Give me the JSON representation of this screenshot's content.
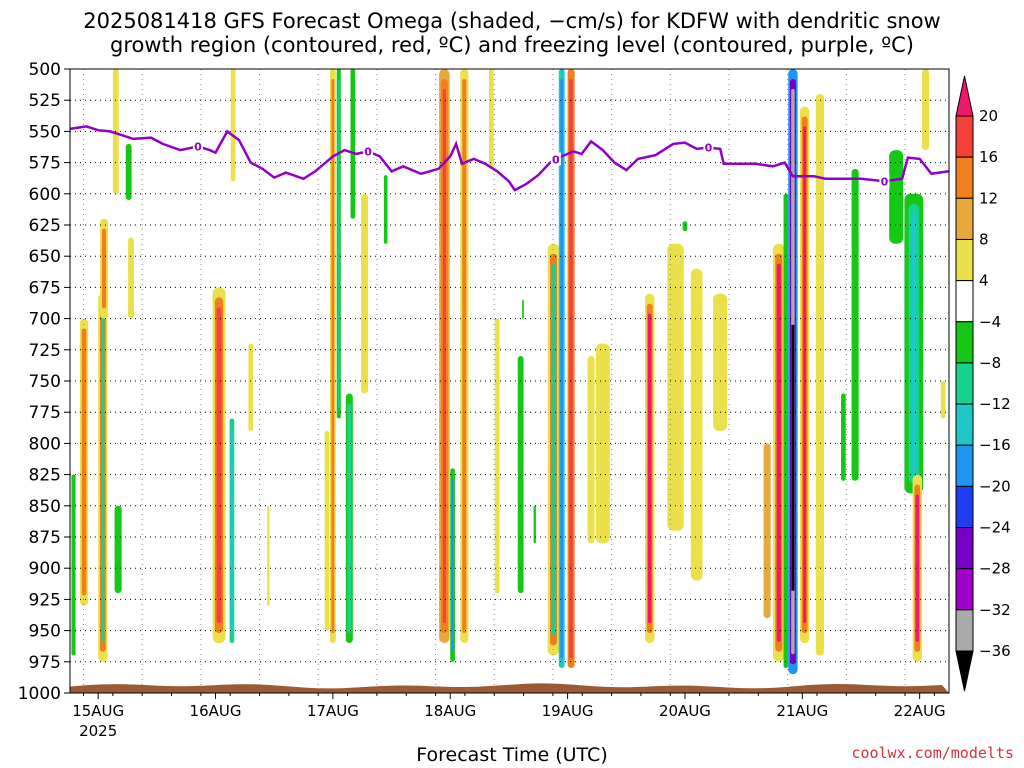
{
  "title_line1": "2025081418 GFS Forecast Omega (shaded, −cm/s) for KDFW with dendritic snow",
  "title_line2": "growth region (contoured, red, ºC) and freezing level (contoured, purple, ºC)",
  "credit": "coolwx.com/modelts",
  "chart_data": {
    "type": "heatmap",
    "xlabel": "Forecast Time (UTC)",
    "ylabel": "",
    "x_ticks": [
      {
        "t": 0.0,
        "label": "15AUG",
        "sub": "2025"
      },
      {
        "t": 1.0,
        "label": "16AUG",
        "sub": ""
      },
      {
        "t": 2.0,
        "label": "17AUG",
        "sub": ""
      },
      {
        "t": 3.0,
        "label": "18AUG",
        "sub": ""
      },
      {
        "t": 4.0,
        "label": "19AUG",
        "sub": ""
      },
      {
        "t": 5.0,
        "label": "20AUG",
        "sub": ""
      },
      {
        "t": 6.0,
        "label": "21AUG",
        "sub": ""
      },
      {
        "t": 7.0,
        "label": "22AUG",
        "sub": ""
      }
    ],
    "x_range_days": [
      -0.24,
      7.25
    ],
    "y_range_hpa": [
      500,
      1000
    ],
    "y_ticks": [
      500,
      525,
      550,
      575,
      600,
      625,
      650,
      675,
      700,
      725,
      750,
      775,
      800,
      825,
      850,
      875,
      900,
      925,
      950,
      975,
      1000
    ],
    "grid": true,
    "colorbar": {
      "labels": [
        20,
        16,
        12,
        8,
        4,
        -4,
        -8,
        -12,
        -16,
        -20,
        -24,
        -28,
        -32,
        -36
      ],
      "colors": [
        "#f0186e",
        "#f5413a",
        "#f07f1e",
        "#e8a83c",
        "#ebe04a",
        "#ffffff",
        "#16c816",
        "#16d28c",
        "#1ec8c8",
        "#1e96f0",
        "#1e3cf0",
        "#7800c8",
        "#a000c8",
        "#aaaaaa",
        "#000000"
      ]
    },
    "freezing_level_label": "0",
    "freezing_level": [
      [
        -0.24,
        548
      ],
      [
        -0.1,
        546
      ],
      [
        0.0,
        549
      ],
      [
        0.1,
        550
      ],
      [
        0.2,
        553
      ],
      [
        0.3,
        556
      ],
      [
        0.45,
        555
      ],
      [
        0.55,
        560
      ],
      [
        0.7,
        565
      ],
      [
        0.85,
        562
      ],
      [
        0.95,
        565
      ],
      [
        1.0,
        567
      ],
      [
        1.1,
        550
      ],
      [
        1.2,
        557
      ],
      [
        1.3,
        575
      ],
      [
        1.4,
        580
      ],
      [
        1.5,
        587
      ],
      [
        1.6,
        583
      ],
      [
        1.75,
        588
      ],
      [
        1.85,
        582
      ],
      [
        2.0,
        570
      ],
      [
        2.1,
        565
      ],
      [
        2.2,
        568
      ],
      [
        2.3,
        566
      ],
      [
        2.4,
        570
      ],
      [
        2.5,
        582
      ],
      [
        2.6,
        578
      ],
      [
        2.75,
        584
      ],
      [
        2.9,
        580
      ],
      [
        3.0,
        570
      ],
      [
        3.05,
        560
      ],
      [
        3.1,
        576
      ],
      [
        3.2,
        572
      ],
      [
        3.3,
        576
      ],
      [
        3.4,
        582
      ],
      [
        3.5,
        590
      ],
      [
        3.55,
        597
      ],
      [
        3.65,
        592
      ],
      [
        3.75,
        585
      ],
      [
        3.85,
        575
      ],
      [
        3.95,
        570
      ],
      [
        4.05,
        566
      ],
      [
        4.12,
        568
      ],
      [
        4.2,
        558
      ],
      [
        4.3,
        565
      ],
      [
        4.4,
        575
      ],
      [
        4.5,
        581
      ],
      [
        4.6,
        572
      ],
      [
        4.75,
        569
      ],
      [
        4.9,
        560
      ],
      [
        5.0,
        559
      ],
      [
        5.1,
        564
      ],
      [
        5.2,
        563
      ],
      [
        5.3,
        564
      ],
      [
        5.33,
        576
      ],
      [
        5.6,
        576
      ],
      [
        5.75,
        578
      ],
      [
        5.85,
        575
      ],
      [
        5.92,
        586
      ],
      [
        6.1,
        586
      ],
      [
        6.2,
        588
      ],
      [
        6.5,
        588
      ],
      [
        6.7,
        590
      ],
      [
        6.85,
        588
      ],
      [
        6.9,
        571
      ],
      [
        7.0,
        572
      ],
      [
        7.1,
        584
      ],
      [
        7.25,
        582
      ]
    ],
    "omega_streaks": [
      {
        "t": -0.21,
        "p0": 825,
        "p1": 970,
        "w": 0.035,
        "layers": [
          [
            0.035,
            "#16c816"
          ]
        ]
      },
      {
        "t": -0.12,
        "p0": 700,
        "p1": 930,
        "w": 0.07,
        "layers": [
          [
            0.07,
            "#ebe04a"
          ],
          [
            0.04,
            "#f07f1e"
          ]
        ]
      },
      {
        "t": 0.04,
        "p0": 680,
        "p1": 975,
        "w": 0.08,
        "layers": [
          [
            0.08,
            "#ebe04a"
          ],
          [
            0.05,
            "#f07f1e"
          ],
          [
            0.025,
            "#16d28c"
          ]
        ]
      },
      {
        "t": 0.05,
        "p0": 620,
        "p1": 700,
        "w": 0.07,
        "layers": [
          [
            0.07,
            "#ebe04a"
          ],
          [
            0.035,
            "#f07f1e"
          ]
        ]
      },
      {
        "t": 0.17,
        "p0": 850,
        "p1": 920,
        "w": 0.06,
        "layers": [
          [
            0.06,
            "#16c816"
          ]
        ]
      },
      {
        "t": 0.15,
        "p0": 500,
        "p1": 600,
        "w": 0.05,
        "layers": [
          [
            0.05,
            "#ebe04a"
          ]
        ]
      },
      {
        "t": 0.26,
        "p0": 560,
        "p1": 605,
        "w": 0.05,
        "layers": [
          [
            0.05,
            "#16c816"
          ]
        ]
      },
      {
        "t": 0.28,
        "p0": 635,
        "p1": 700,
        "w": 0.05,
        "layers": [
          [
            0.05,
            "#ebe04a"
          ]
        ]
      },
      {
        "t": 1.03,
        "p0": 675,
        "p1": 960,
        "w": 0.11,
        "layers": [
          [
            0.11,
            "#ebe04a"
          ],
          [
            0.07,
            "#f07f1e"
          ],
          [
            0.04,
            "#f5413a"
          ]
        ]
      },
      {
        "t": 1.14,
        "p0": 780,
        "p1": 960,
        "w": 0.04,
        "layers": [
          [
            0.04,
            "#16d28c"
          ],
          [
            0.02,
            "#1ec8c8"
          ]
        ]
      },
      {
        "t": 1.15,
        "p0": 500,
        "p1": 590,
        "w": 0.04,
        "layers": [
          [
            0.04,
            "#ebe04a"
          ]
        ]
      },
      {
        "t": 1.3,
        "p0": 720,
        "p1": 790,
        "w": 0.04,
        "layers": [
          [
            0.04,
            "#ebe04a"
          ]
        ]
      },
      {
        "t": 1.45,
        "p0": 850,
        "p1": 930,
        "w": 0.02,
        "layers": [
          [
            0.02,
            "#ebe04a"
          ]
        ]
      },
      {
        "t": 1.95,
        "p0": 790,
        "p1": 950,
        "w": 0.04,
        "layers": [
          [
            0.04,
            "#ebe04a"
          ]
        ]
      },
      {
        "t": 2.0,
        "p0": 500,
        "p1": 960,
        "w": 0.05,
        "layers": [
          [
            0.05,
            "#ebe04a"
          ],
          [
            0.025,
            "#f07f1e"
          ]
        ]
      },
      {
        "t": 2.05,
        "p0": 500,
        "p1": 780,
        "w": 0.035,
        "layers": [
          [
            0.035,
            "#16c816"
          ],
          [
            0.015,
            "#16d28c"
          ]
        ]
      },
      {
        "t": 2.14,
        "p0": 760,
        "p1": 960,
        "w": 0.06,
        "layers": [
          [
            0.06,
            "#16c816"
          ],
          [
            0.035,
            "#16d28c"
          ]
        ]
      },
      {
        "t": 2.17,
        "p0": 500,
        "p1": 620,
        "w": 0.04,
        "layers": [
          [
            0.04,
            "#16c816"
          ]
        ]
      },
      {
        "t": 2.27,
        "p0": 600,
        "p1": 760,
        "w": 0.06,
        "layers": [
          [
            0.06,
            "#ebe04a"
          ]
        ]
      },
      {
        "t": 2.45,
        "p0": 585,
        "p1": 640,
        "w": 0.03,
        "layers": [
          [
            0.03,
            "#16c816"
          ]
        ]
      },
      {
        "t": 2.95,
        "p0": 500,
        "p1": 960,
        "w": 0.09,
        "layers": [
          [
            0.09,
            "#e8a83c"
          ],
          [
            0.06,
            "#f07f1e"
          ],
          [
            0.025,
            "#f5413a"
          ]
        ]
      },
      {
        "t": 3.02,
        "p0": 820,
        "p1": 975,
        "w": 0.04,
        "layers": [
          [
            0.04,
            "#16c816"
          ],
          [
            0.02,
            "#1e96f0"
          ]
        ]
      },
      {
        "t": 3.12,
        "p0": 500,
        "p1": 960,
        "w": 0.07,
        "layers": [
          [
            0.07,
            "#ebe04a"
          ],
          [
            0.035,
            "#f07f1e"
          ]
        ]
      },
      {
        "t": 3.35,
        "p0": 500,
        "p1": 580,
        "w": 0.04,
        "layers": [
          [
            0.04,
            "#ebe04a"
          ]
        ]
      },
      {
        "t": 3.4,
        "p0": 700,
        "p1": 920,
        "w": 0.04,
        "layers": [
          [
            0.04,
            "#ebe04a"
          ]
        ]
      },
      {
        "t": 3.6,
        "p0": 730,
        "p1": 920,
        "w": 0.05,
        "layers": [
          [
            0.05,
            "#16c816"
          ]
        ]
      },
      {
        "t": 3.88,
        "p0": 640,
        "p1": 970,
        "w": 0.1,
        "layers": [
          [
            0.1,
            "#ebe04a"
          ],
          [
            0.06,
            "#f07f1e"
          ],
          [
            0.03,
            "#16d28c"
          ]
        ]
      },
      {
        "t": 3.95,
        "p0": 500,
        "p1": 980,
        "w": 0.05,
        "layers": [
          [
            0.05,
            "#1ec8c8"
          ],
          [
            0.025,
            "#1e96f0"
          ]
        ]
      },
      {
        "t": 4.03,
        "p0": 500,
        "p1": 980,
        "w": 0.06,
        "layers": [
          [
            0.06,
            "#f07f1e"
          ],
          [
            0.03,
            "#f5413a"
          ]
        ]
      },
      {
        "t": 4.2,
        "p0": 730,
        "p1": 880,
        "w": 0.06,
        "layers": [
          [
            0.06,
            "#ebe04a"
          ]
        ]
      },
      {
        "t": 4.3,
        "p0": 720,
        "p1": 880,
        "w": 0.12,
        "layers": [
          [
            0.12,
            "#ebe04a"
          ]
        ]
      },
      {
        "t": 3.72,
        "p0": 850,
        "p1": 880,
        "w": 0.02,
        "layers": [
          [
            0.02,
            "#16c816"
          ]
        ]
      },
      {
        "t": 3.62,
        "p0": 685,
        "p1": 700,
        "w": 0.015,
        "layers": [
          [
            0.015,
            "#16c816"
          ]
        ]
      },
      {
        "t": 4.7,
        "p0": 680,
        "p1": 960,
        "w": 0.08,
        "layers": [
          [
            0.08,
            "#ebe04a"
          ],
          [
            0.05,
            "#f07f1e"
          ],
          [
            0.03,
            "#f0186e"
          ]
        ]
      },
      {
        "t": 4.92,
        "p0": 640,
        "p1": 870,
        "w": 0.14,
        "layers": [
          [
            0.14,
            "#ebe04a"
          ]
        ]
      },
      {
        "t": 5.1,
        "p0": 660,
        "p1": 910,
        "w": 0.1,
        "layers": [
          [
            0.1,
            "#ebe04a"
          ]
        ]
      },
      {
        "t": 5.3,
        "p0": 680,
        "p1": 790,
        "w": 0.12,
        "layers": [
          [
            0.12,
            "#ebe04a"
          ]
        ]
      },
      {
        "t": 5.0,
        "p0": 622,
        "p1": 630,
        "w": 0.04,
        "layers": [
          [
            0.04,
            "#16c816"
          ]
        ]
      },
      {
        "t": 5.7,
        "p0": 800,
        "p1": 940,
        "w": 0.06,
        "layers": [
          [
            0.06,
            "#e8a83c"
          ]
        ]
      },
      {
        "t": 5.8,
        "p0": 640,
        "p1": 975,
        "w": 0.1,
        "layers": [
          [
            0.1,
            "#ebe04a"
          ],
          [
            0.06,
            "#f07f1e"
          ],
          [
            0.035,
            "#f0186e"
          ]
        ]
      },
      {
        "t": 5.86,
        "p0": 600,
        "p1": 980,
        "w": 0.04,
        "layers": [
          [
            0.04,
            "#16c816"
          ]
        ]
      },
      {
        "t": 5.92,
        "p0": 500,
        "p1": 985,
        "w": 0.08,
        "layers": [
          [
            0.08,
            "#1e96f0"
          ],
          [
            0.05,
            "#7800c8"
          ],
          [
            0.03,
            "#aaaaaa"
          ]
        ]
      },
      {
        "t": 6.02,
        "p0": 530,
        "p1": 960,
        "w": 0.08,
        "layers": [
          [
            0.08,
            "#ebe04a"
          ],
          [
            0.05,
            "#f07f1e"
          ],
          [
            0.025,
            "#f0186e"
          ]
        ]
      },
      {
        "t": 6.15,
        "p0": 520,
        "p1": 970,
        "w": 0.07,
        "layers": [
          [
            0.07,
            "#ebe04a"
          ]
        ]
      },
      {
        "t": 6.45,
        "p0": 580,
        "p1": 830,
        "w": 0.06,
        "layers": [
          [
            0.06,
            "#16c816"
          ]
        ]
      },
      {
        "t": 6.35,
        "p0": 760,
        "p1": 830,
        "w": 0.04,
        "layers": [
          [
            0.04,
            "#16c816"
          ]
        ]
      },
      {
        "t": 6.8,
        "p0": 565,
        "p1": 640,
        "w": 0.12,
        "layers": [
          [
            0.12,
            "#16c816"
          ]
        ]
      },
      {
        "t": 6.95,
        "p0": 600,
        "p1": 840,
        "w": 0.16,
        "layers": [
          [
            0.16,
            "#16c816"
          ],
          [
            0.09,
            "#16d28c"
          ],
          [
            0.04,
            "#1ec8c8"
          ]
        ]
      },
      {
        "t": 7.05,
        "p0": 500,
        "p1": 565,
        "w": 0.06,
        "layers": [
          [
            0.06,
            "#ebe04a"
          ]
        ]
      },
      {
        "t": 6.98,
        "p0": 825,
        "p1": 975,
        "w": 0.08,
        "layers": [
          [
            0.08,
            "#ebe04a"
          ],
          [
            0.05,
            "#f07f1e"
          ],
          [
            0.03,
            "#f0186e"
          ]
        ]
      },
      {
        "t": 7.2,
        "p0": 750,
        "p1": 780,
        "w": 0.04,
        "layers": [
          [
            0.04,
            "#ebe04a"
          ]
        ]
      }
    ],
    "black_core": {
      "t": 5.92,
      "p0": 705,
      "p1": 918,
      "w": 0.025,
      "color": "#000000"
    },
    "gray_core": {
      "t": 5.92,
      "p0": 550,
      "p1": 700,
      "w": 0.02,
      "color": "#aaaaaa"
    },
    "terrain_color": "#9c5a33"
  }
}
